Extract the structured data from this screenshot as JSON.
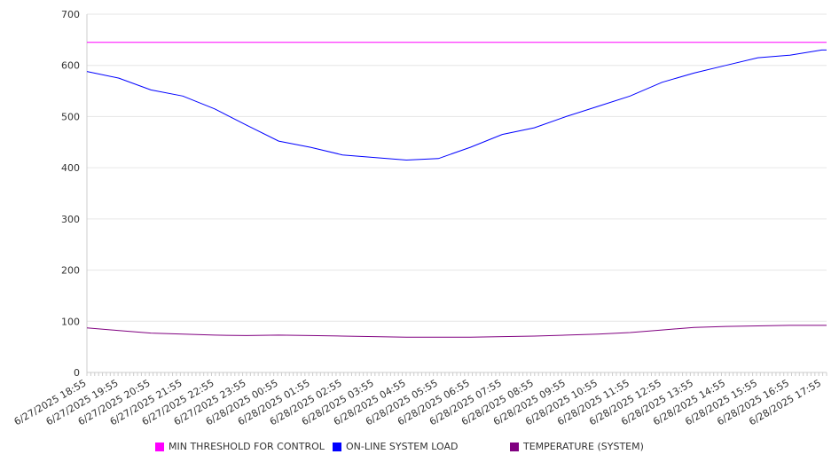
{
  "chart_data": {
    "type": "line",
    "title": "",
    "xlabel": "",
    "ylabel": "",
    "ylim": [
      0,
      700
    ],
    "y_ticks": [
      "0",
      "100",
      "200",
      "300",
      "400",
      "500",
      "600",
      "700"
    ],
    "y_tick_values": [
      0,
      100,
      200,
      300,
      400,
      500,
      600,
      700
    ],
    "grid": "horizontal",
    "legend_position": "bottom",
    "categories": [
      "6/27/2025 18:55",
      "6/27/2025 19:55",
      "6/27/2025 20:55",
      "6/27/2025 21:55",
      "6/27/2025 22:55",
      "6/27/2025 23:55",
      "6/28/2025 00:55",
      "6/28/2025 01:55",
      "6/28/2025 02:55",
      "6/28/2025 03:55",
      "6/28/2025 04:55",
      "6/28/2025 05:55",
      "6/28/2025 06:55",
      "6/28/2025 07:55",
      "6/28/2025 08:55",
      "6/28/2025 09:55",
      "6/28/2025 10:55",
      "6/28/2025 11:55",
      "6/28/2025 12:55",
      "6/28/2025 13:55",
      "6/28/2025 14:55",
      "6/28/2025 15:55",
      "6/28/2025 16:55",
      "6/28/2025 17:55"
    ],
    "series": [
      {
        "name": "MIN THRESHOLD FOR CONTROL",
        "color": "#ff00ff",
        "values": [
          645,
          645,
          645,
          645,
          645,
          645,
          645,
          645,
          645,
          645,
          645,
          645,
          645,
          645,
          645,
          645,
          645,
          645,
          645,
          645,
          645,
          645,
          645,
          645
        ]
      },
      {
        "name": "ON-LINE SYSTEM LOAD",
        "color": "#0000ff",
        "values": [
          588,
          575,
          552,
          540,
          515,
          483,
          452,
          440,
          425,
          420,
          415,
          418,
          440,
          465,
          478,
          500,
          520,
          540,
          567,
          585,
          600,
          615,
          620,
          630
        ]
      },
      {
        "name": "TEMPERATURE (SYSTEM)",
        "color": "#800080",
        "values": [
          87,
          82,
          77,
          75,
          73,
          72,
          73,
          72,
          71,
          70,
          69,
          69,
          69,
          70,
          71,
          73,
          75,
          78,
          83,
          88,
          90,
          91,
          92,
          92
        ]
      }
    ]
  }
}
